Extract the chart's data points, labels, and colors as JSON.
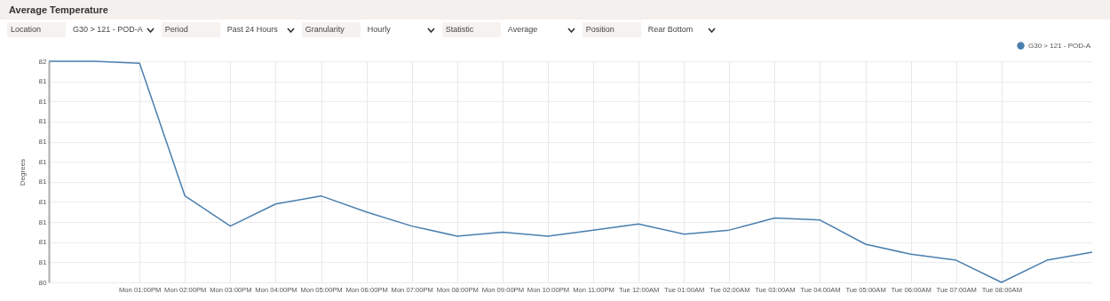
{
  "chart_data": {
    "type": "line",
    "title": "Average Temperature",
    "ylabel": "Degrees",
    "annotations": [
      "Location",
      "G30 > 121 - POD-A",
      "Period",
      "Past 24 Hours",
      "Granularity",
      "Hourly",
      "Statistic",
      "Average",
      "Position",
      "Rear Bottom"
    ],
    "categories": [
      null,
      null,
      "Mon 01:00PM",
      "Mon 02:00PM",
      "Mon 03:00PM",
      "Mon 04:00PM",
      "Mon 05:00PM",
      "Mon 06:00PM",
      "Mon 07:00PM",
      "Mon 08:00PM",
      "Mon 09:00PM",
      "Mon 10:00PM",
      "Mon 11:00PM",
      "Tue 12:00AM",
      "Tue 01:00AM",
      "Tue 02:00AM",
      "Tue 03:00AM",
      "Tue 04:00AM",
      "Tue 05:00AM",
      "Tue 06:00AM",
      "Tue 07:00AM",
      "Tue 08:00AM",
      null,
      null
    ],
    "series": [
      {
        "name": "G30 > 121 - POD-A",
        "color": "#4a7fae",
        "values": [
          81.6,
          81.6,
          81.59,
          80.93,
          80.78,
          80.89,
          80.93,
          80.85,
          80.78,
          80.73,
          80.75,
          80.73,
          80.76,
          80.79,
          80.74,
          80.76,
          80.82,
          80.81,
          80.69,
          80.64,
          80.61,
          80.5,
          80.61,
          80.65
        ]
      }
    ],
    "ylim": [
      80.5,
      81.6
    ],
    "yticks": [
      {
        "value": 80.5,
        "label": "80"
      },
      {
        "value": 80.6,
        "label": "81"
      },
      {
        "value": 80.7,
        "label": "81"
      },
      {
        "value": 80.8,
        "label": "81"
      },
      {
        "value": 80.9,
        "label": "81"
      },
      81,
      {
        "value": 81.1,
        "label": "81"
      },
      {
        "value": 81.2,
        "label": "81"
      },
      {
        "value": 81.3,
        "label": "81"
      },
      {
        "value": 81.4,
        "label": "81"
      },
      {
        "value": 81.5,
        "label": "81"
      },
      {
        "value": 81.6,
        "label": "82"
      }
    ],
    "grid": true,
    "legend": "top right",
    "marker": "none",
    "line_style": "solid"
  }
}
